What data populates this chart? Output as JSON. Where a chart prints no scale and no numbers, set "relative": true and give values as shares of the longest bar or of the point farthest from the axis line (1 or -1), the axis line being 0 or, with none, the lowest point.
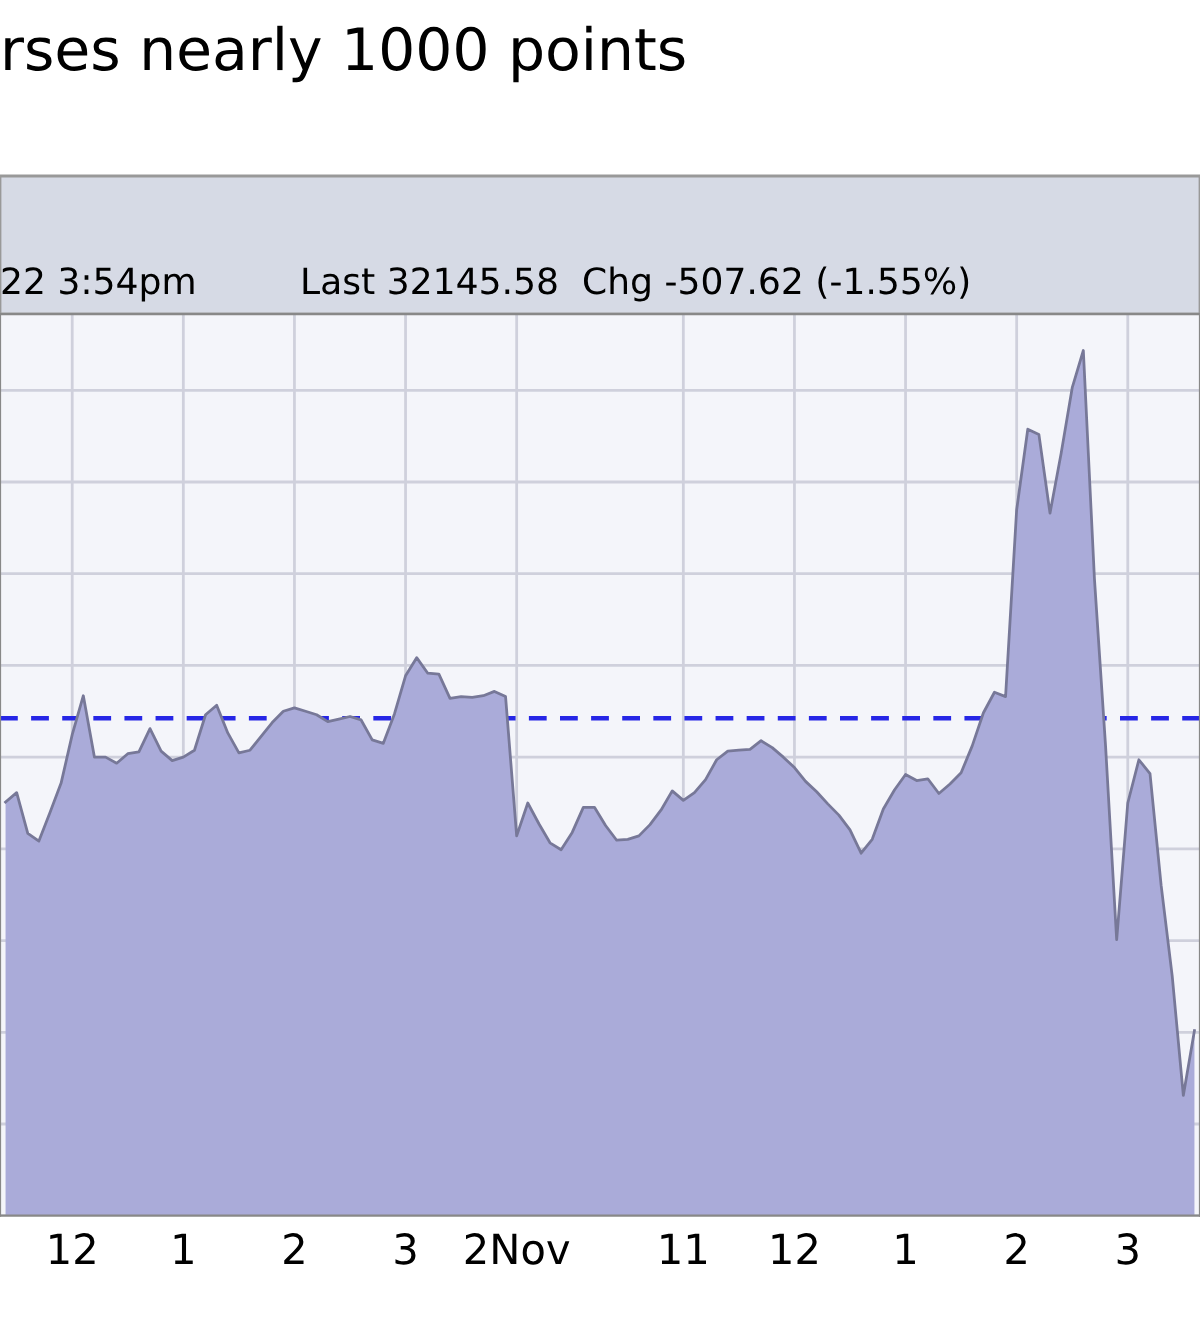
{
  "chart_data": {
    "type": "area",
    "title": "rses nearly 1000 points",
    "annotations": [
      "22 3:54pm",
      "Last 32145.58  Chg -507.62 (-1.55%)"
    ],
    "relative": true,
    "grid": true,
    "categories": [
      null,
      null,
      null,
      null,
      null,
      null,
      "12",
      null,
      null,
      null,
      null,
      null,
      null,
      null,
      null,
      null,
      "1",
      null,
      null,
      null,
      null,
      null,
      null,
      null,
      null,
      null,
      "2",
      null,
      null,
      null,
      null,
      null,
      null,
      null,
      null,
      null,
      "3",
      null,
      null,
      null,
      null,
      null,
      null,
      null,
      null,
      null,
      "2Nov",
      null,
      null,
      null,
      null,
      null,
      null,
      null,
      null,
      null,
      null,
      null,
      null,
      null,
      null,
      "11",
      null,
      null,
      null,
      null,
      null,
      null,
      null,
      null,
      null,
      "12",
      null,
      null,
      null,
      null,
      null,
      null,
      null,
      null,
      null,
      "1",
      null,
      null,
      null,
      null,
      null,
      null,
      null,
      null,
      null,
      "2",
      null,
      null,
      null,
      null,
      null,
      null,
      null,
      null,
      null,
      "3",
      null,
      null,
      null,
      null,
      null,
      null
    ],
    "ref_lines": [
      {
        "axis": "y",
        "value": 0.575,
        "label": null,
        "color": "#2626e6",
        "line_style": "dashed"
      }
    ],
    "series": [
      {
        "color": "#aaabd9",
        "values": [
          0.478,
          0.489,
          0.442,
          0.433,
          0.466,
          0.5,
          0.556,
          0.601,
          0.53,
          0.53,
          0.523,
          0.534,
          0.536,
          0.563,
          0.537,
          0.526,
          0.53,
          0.538,
          0.579,
          0.59,
          0.558,
          0.535,
          0.538,
          0.554,
          0.57,
          0.583,
          0.587,
          0.583,
          0.579,
          0.571,
          0.574,
          0.577,
          0.573,
          0.55,
          0.546,
          0.58,
          0.624,
          0.645,
          0.627,
          0.626,
          0.598,
          0.6,
          0.599,
          0.601,
          0.606,
          0.6,
          0.439,
          0.477,
          0.453,
          0.431,
          0.423,
          0.443,
          0.472,
          0.472,
          0.451,
          0.434,
          0.435,
          0.439,
          0.452,
          0.469,
          0.491,
          0.48,
          0.489,
          0.504,
          0.527,
          0.537,
          0.538,
          0.539,
          0.549,
          0.541,
          0.53,
          0.518,
          0.502,
          0.49,
          0.476,
          0.463,
          0.446,
          0.419,
          0.435,
          0.47,
          0.492,
          0.51,
          0.503,
          0.505,
          0.488,
          0.499,
          0.512,
          0.543,
          0.581,
          0.605,
          0.6,
          0.816,
          0.909,
          0.903,
          0.812,
          0.881,
          0.957,
          1.0,
          0.736,
          0.543,
          0.319,
          0.477,
          0.527,
          0.511,
          0.382,
          0.277,
          0.139,
          0.214
        ]
      }
    ]
  }
}
